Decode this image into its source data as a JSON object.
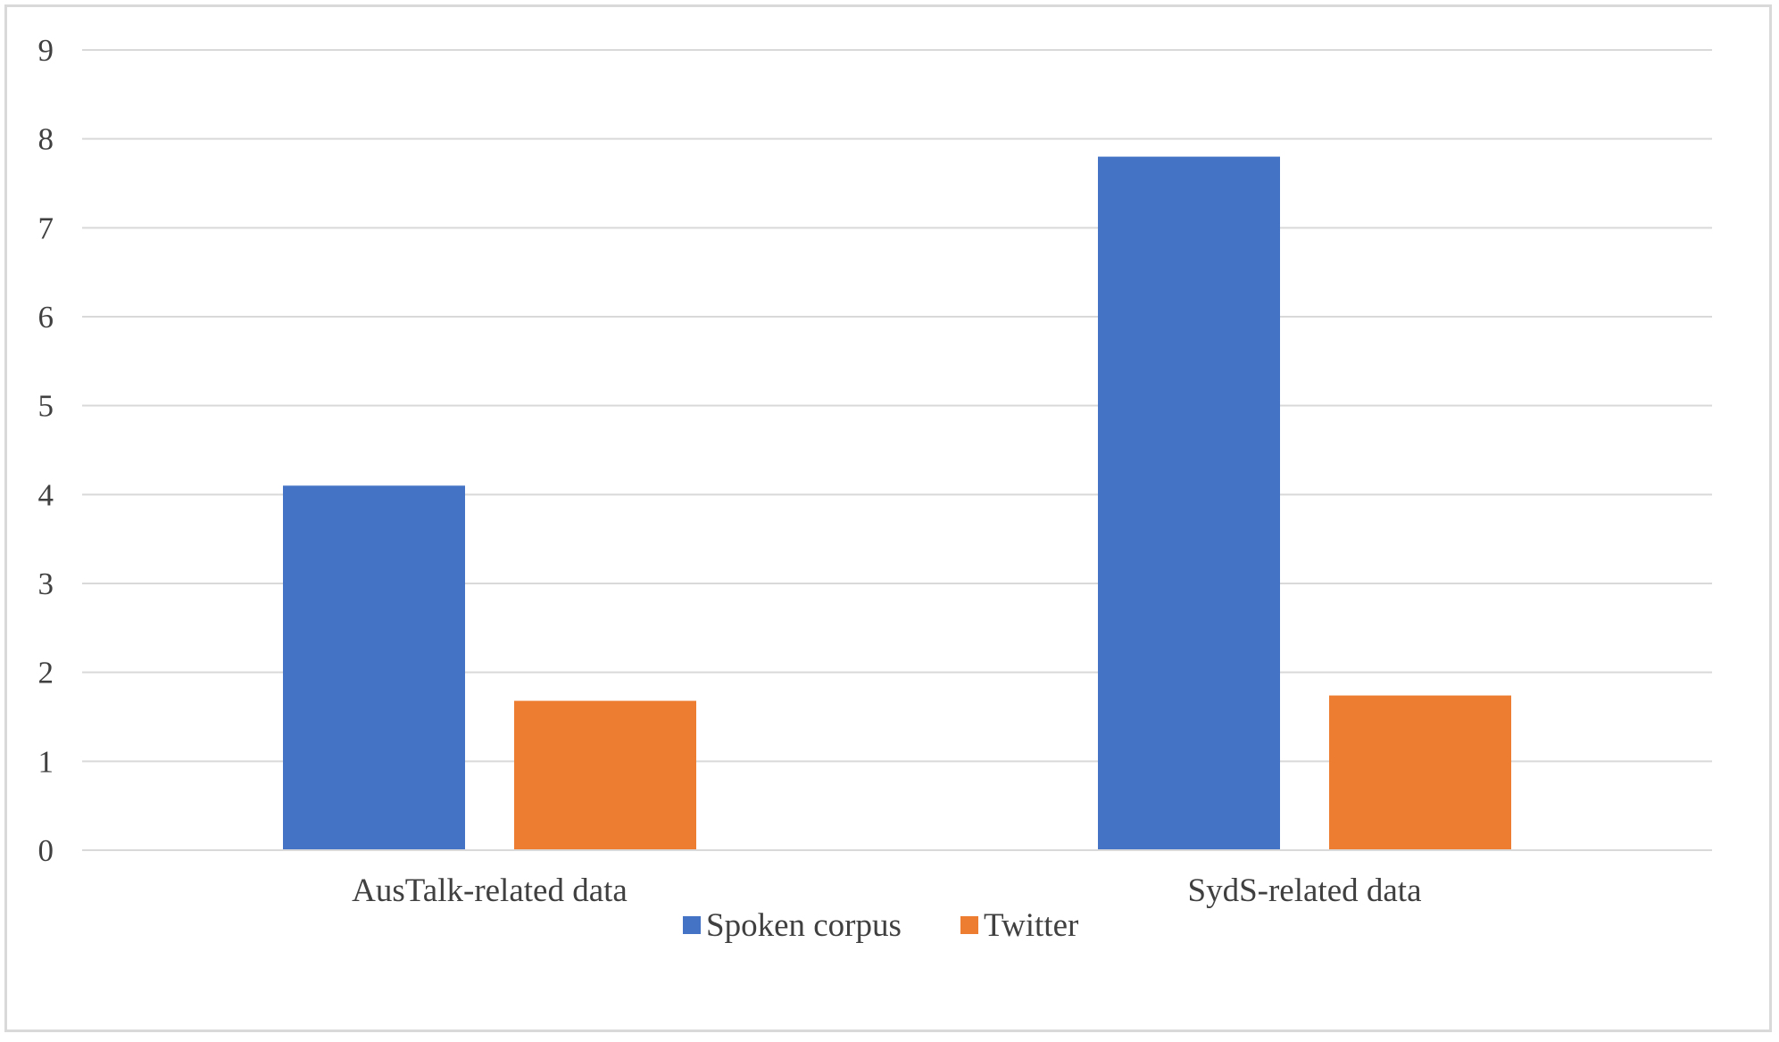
{
  "chart_data": {
    "type": "bar",
    "categories": [
      "AusTalk-related data",
      "SydS-related data"
    ],
    "series": [
      {
        "name": "Spoken corpus",
        "color": "#4472c4",
        "values": [
          4.1,
          7.8
        ]
      },
      {
        "name": "Twitter",
        "color": "#ed7d31",
        "values": [
          1.68,
          1.74
        ]
      }
    ],
    "ylim": [
      0,
      9
    ],
    "yticks": [
      0,
      1,
      2,
      3,
      4,
      5,
      6,
      7,
      8,
      9
    ],
    "grid": true,
    "gridline_color": "#d9d9d9",
    "legend_position": "bottom"
  }
}
